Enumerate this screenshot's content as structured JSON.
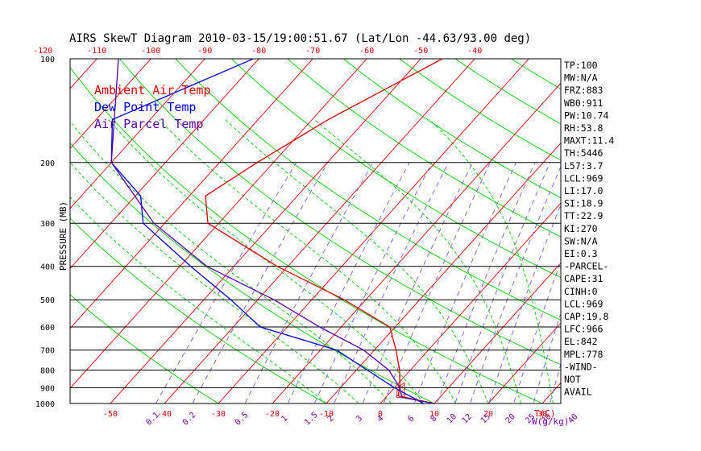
{
  "chart_data": {
    "type": "line",
    "title": "AIRS SkewT Diagram 2010-03-15/19:00:51.67 (Lat/Lon -44.63/93.00 deg)",
    "ylabel": "PRESSURE (MB)",
    "x_unit_label": "T(C)",
    "mixing_unit_label": "W(g/kg)",
    "y_scale": "log",
    "ylim": [
      1000,
      100
    ],
    "pressure_ticks": [
      "100",
      "200",
      "300",
      "400",
      "500",
      "600",
      "700",
      "800",
      "900",
      "1000"
    ],
    "pressure_tick_values": [
      100,
      200,
      300,
      400,
      500,
      600,
      700,
      800,
      900,
      1000
    ],
    "top_temp_ticks": [
      -120,
      -110,
      -100,
      -90,
      -80,
      -70,
      -60,
      -50,
      -40
    ],
    "bottom_temp_ticks": [
      -50,
      -40,
      -30,
      -20,
      -10,
      0,
      10,
      20,
      30
    ],
    "mixing_ratio_labels": [
      "0.1",
      "0.2",
      "0.5",
      "1",
      "1.5",
      "2",
      "3",
      "4",
      "6",
      "8",
      "10",
      "12",
      "15",
      "20",
      "25",
      "30",
      "40"
    ],
    "mixing_ratio_values": [
      0.1,
      0.2,
      0.5,
      1,
      1.5,
      2,
      3,
      4,
      6,
      8,
      10,
      12,
      15,
      20,
      25,
      30,
      40
    ],
    "legend": [
      {
        "label": "Ambient Air Temp",
        "color": "#dd0000"
      },
      {
        "label": "Dew Point Temp",
        "color": "#0000dd"
      },
      {
        "label": "Air Parcel Temp",
        "color": "#5500aa"
      }
    ],
    "series": [
      {
        "name": "Ambient Air Temp",
        "color": "#dd0000",
        "points": [
          {
            "p": 100,
            "t": -46
          },
          {
            "p": 150,
            "t": -57
          },
          {
            "p": 200,
            "t": -63
          },
          {
            "p": 250,
            "t": -67
          },
          {
            "p": 300,
            "t": -62
          },
          {
            "p": 400,
            "t": -42
          },
          {
            "p": 500,
            "t": -24
          },
          {
            "p": 600,
            "t": -11
          },
          {
            "p": 700,
            "t": -6
          },
          {
            "p": 800,
            "t": -2
          },
          {
            "p": 900,
            "t": 1
          },
          {
            "p": 950,
            "t": 2
          },
          {
            "p": 1000,
            "t": 10
          }
        ]
      },
      {
        "name": "Dew Point Temp",
        "color": "#0000dd",
        "points": [
          {
            "p": 100,
            "t": -81
          },
          {
            "p": 150,
            "t": -97
          },
          {
            "p": 200,
            "t": -90
          },
          {
            "p": 250,
            "t": -79
          },
          {
            "p": 300,
            "t": -74
          },
          {
            "p": 400,
            "t": -58
          },
          {
            "p": 500,
            "t": -45
          },
          {
            "p": 600,
            "t": -35
          },
          {
            "p": 700,
            "t": -17
          },
          {
            "p": 800,
            "t": -8
          },
          {
            "p": 900,
            "t": 0
          },
          {
            "p": 1000,
            "t": 8
          }
        ]
      },
      {
        "name": "Air Parcel Temp",
        "color": "#5500aa",
        "points": [
          {
            "p": 100,
            "t": -106
          },
          {
            "p": 200,
            "t": -90
          },
          {
            "p": 300,
            "t": -72
          },
          {
            "p": 400,
            "t": -55
          },
          {
            "p": 500,
            "t": -37
          },
          {
            "p": 600,
            "t": -24
          },
          {
            "p": 700,
            "t": -12
          },
          {
            "p": 800,
            "t": -4
          },
          {
            "p": 900,
            "t": 1
          },
          {
            "p": 960,
            "t": 3
          },
          {
            "p": 1000,
            "t": 10
          }
        ]
      }
    ],
    "indices": [
      "TP:100",
      "MW:N/A",
      "FRZ:883",
      "WB0:911",
      "PW:10.74",
      "RH:53.8",
      "MAXT:11.4",
      "TH:5446",
      "L57:3.7",
      "LCL:969",
      "LI:17.0",
      "SI:18.9",
      "TT:22.9",
      "KI:270",
      "SW:N/A",
      "EI:0.3",
      "-PARCEL-",
      "CAPE:31",
      "CINH:0",
      "LCL:969",
      "CAP:19.8",
      "LFC:966",
      "EL:842",
      "MPL:778",
      "-WIND-",
      "NOT",
      "AVAIL"
    ],
    "colors": {
      "isotherm": "#dd0000",
      "dry_adiabat": "#00cc00",
      "moist_adiabat": "#00cc00",
      "mixing_ratio": "#7755ee",
      "isobar": "#000000",
      "tick_label": "#dd0000",
      "mixing_label": "#7700aa",
      "cape_hatch": "#dd0000"
    }
  }
}
